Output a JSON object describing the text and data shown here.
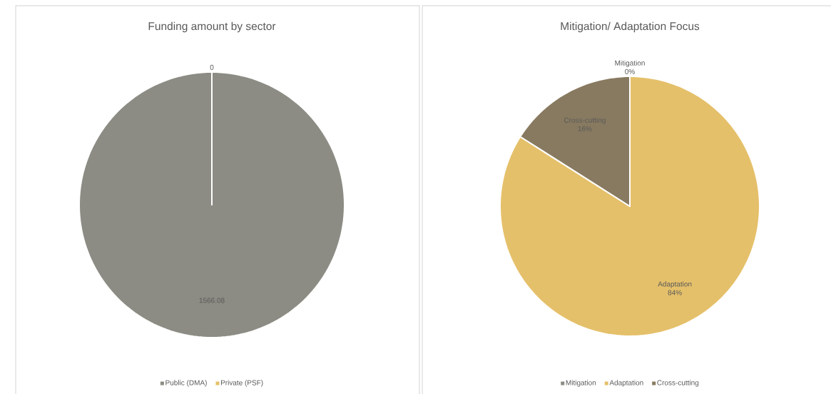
{
  "chart_data": [
    {
      "type": "pie",
      "title": "Funding amount by sector",
      "categories": [
        "Public (DMA)",
        "Private (PSF)"
      ],
      "values": [
        1566.08,
        0
      ],
      "colors": [
        "#8c8c84",
        "#e5c06a"
      ],
      "value_labels": [
        "1566.08",
        "0"
      ],
      "data_labels": true,
      "legend": "bottom"
    },
    {
      "type": "pie",
      "title": "Mitigation/ Adaptation Focus",
      "categories": [
        "Mitigation",
        "Adaptation",
        "Cross-cutting"
      ],
      "values": [
        0,
        84,
        16
      ],
      "colors": [
        "#8c8c84",
        "#e5c06a",
        "#887a60"
      ],
      "value_labels": [
        "0%",
        "84%",
        "16%"
      ],
      "legend": "bottom"
    }
  ]
}
